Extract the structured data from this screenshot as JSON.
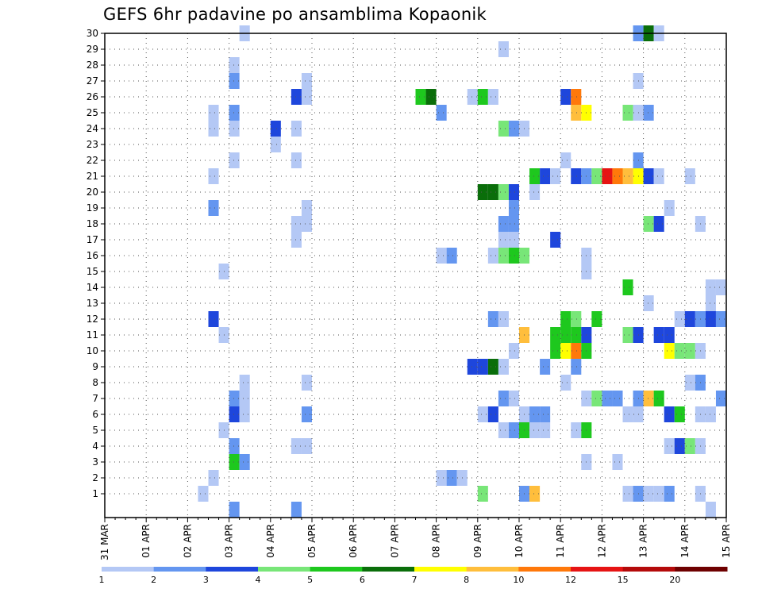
{
  "chart_data": {
    "type": "heatmap",
    "title": "GEFS 6hr padavine po ansamblima Kopaonik",
    "xlabel": "",
    "ylabel": "",
    "x_tick_labels": [
      "31 MAR",
      "01 APR",
      "02 APR",
      "03 APR",
      "04 APR",
      "05 APR",
      "06 APR",
      "07 APR",
      "08 APR",
      "09 APR",
      "10 APR",
      "11 APR",
      "12 APR",
      "13 APR",
      "14 APR",
      "15 APR"
    ],
    "y_tick_labels": [
      "1",
      "2",
      "3",
      "4",
      "5",
      "6",
      "7",
      "8",
      "9",
      "10",
      "11",
      "12",
      "13",
      "14",
      "15",
      "16",
      "17",
      "18",
      "19",
      "20",
      "21",
      "22",
      "23",
      "24",
      "25",
      "26",
      "27",
      "28",
      "29",
      "30"
    ],
    "ylim": [
      1,
      30
    ],
    "grid": true,
    "colorbar": {
      "placement": "bottom",
      "labels": [
        "1",
        "2",
        "3",
        "4",
        "5",
        "6",
        "7",
        "8",
        "10",
        "12",
        "15",
        "20"
      ],
      "colors": [
        "#b4c8f5",
        "#6496f0",
        "#1e46dc",
        "#78e678",
        "#1ec81e",
        "#0a6e0a",
        "#ffff00",
        "#ffbe3c",
        "#ff780a",
        "#e61414",
        "#b40a0a",
        "#6e0000"
      ]
    },
    "cells": [
      {
        "d": "02 APR",
        "h": 6,
        "m": 1,
        "v": 1
      },
      {
        "d": "02 APR",
        "h": 12,
        "m": 24,
        "v": 1
      },
      {
        "d": "02 APR",
        "h": 12,
        "m": 25,
        "v": 1
      },
      {
        "d": "02 APR",
        "h": 12,
        "m": 21,
        "v": 1
      },
      {
        "d": "02 APR",
        "h": 12,
        "m": 19,
        "v": 2
      },
      {
        "d": "02 APR",
        "h": 12,
        "m": 12,
        "v": 3
      },
      {
        "d": "02 APR",
        "h": 12,
        "m": 2,
        "v": 1
      },
      {
        "d": "02 APR",
        "h": 18,
        "m": 15,
        "v": 1
      },
      {
        "d": "02 APR",
        "h": 18,
        "m": 11,
        "v": 1
      },
      {
        "d": "02 APR",
        "h": 18,
        "m": 5,
        "v": 1
      },
      {
        "d": "03 APR",
        "h": 0,
        "m": 28,
        "v": 1
      },
      {
        "d": "03 APR",
        "h": 0,
        "m": 27,
        "v": 2
      },
      {
        "d": "03 APR",
        "h": 0,
        "m": 25,
        "v": 2
      },
      {
        "d": "03 APR",
        "h": 0,
        "m": 24,
        "v": 1
      },
      {
        "d": "03 APR",
        "h": 0,
        "m": 22,
        "v": 1
      },
      {
        "d": "03 APR",
        "h": 0,
        "m": 7,
        "v": 2
      },
      {
        "d": "03 APR",
        "h": 0,
        "m": 6,
        "v": 3
      },
      {
        "d": "03 APR",
        "h": 0,
        "m": 4,
        "v": 2
      },
      {
        "d": "03 APR",
        "h": 0,
        "m": 3,
        "v": 5
      },
      {
        "d": "03 APR",
        "h": 0,
        "m": 0,
        "v": 2
      },
      {
        "d": "03 APR",
        "h": 6,
        "m": 30,
        "v": 1
      },
      {
        "d": "03 APR",
        "h": 6,
        "m": 8,
        "v": 1
      },
      {
        "d": "03 APR",
        "h": 6,
        "m": 7,
        "v": 1
      },
      {
        "d": "03 APR",
        "h": 6,
        "m": 6,
        "v": 1
      },
      {
        "d": "03 APR",
        "h": 6,
        "m": 3,
        "v": 2
      },
      {
        "d": "04 APR",
        "h": 0,
        "m": 24,
        "v": 3
      },
      {
        "d": "04 APR",
        "h": 0,
        "m": 23,
        "v": 1
      },
      {
        "d": "04 APR",
        "h": 12,
        "m": 26,
        "v": 3
      },
      {
        "d": "04 APR",
        "h": 12,
        "m": 24,
        "v": 1
      },
      {
        "d": "04 APR",
        "h": 12,
        "m": 22,
        "v": 1
      },
      {
        "d": "04 APR",
        "h": 12,
        "m": 18,
        "v": 1
      },
      {
        "d": "04 APR",
        "h": 12,
        "m": 17,
        "v": 1
      },
      {
        "d": "04 APR",
        "h": 12,
        "m": 4,
        "v": 1
      },
      {
        "d": "04 APR",
        "h": 12,
        "m": 0,
        "v": 2
      },
      {
        "d": "04 APR",
        "h": 18,
        "m": 27,
        "v": 1
      },
      {
        "d": "04 APR",
        "h": 18,
        "m": 26,
        "v": 1
      },
      {
        "d": "04 APR",
        "h": 18,
        "m": 19,
        "v": 1
      },
      {
        "d": "04 APR",
        "h": 18,
        "m": 18,
        "v": 1
      },
      {
        "d": "04 APR",
        "h": 18,
        "m": 8,
        "v": 1
      },
      {
        "d": "04 APR",
        "h": 18,
        "m": 6,
        "v": 2
      },
      {
        "d": "04 APR",
        "h": 18,
        "m": 4,
        "v": 1
      },
      {
        "d": "07 APR",
        "h": 12,
        "m": 26,
        "v": 5
      },
      {
        "d": "07 APR",
        "h": 18,
        "m": 26,
        "v": 6
      },
      {
        "d": "08 APR",
        "h": 0,
        "m": 25,
        "v": 2
      },
      {
        "d": "08 APR",
        "h": 0,
        "m": 16,
        "v": 1
      },
      {
        "d": "08 APR",
        "h": 0,
        "m": 2,
        "v": 1
      },
      {
        "d": "08 APR",
        "h": 6,
        "m": 16,
        "v": 2
      },
      {
        "d": "08 APR",
        "h": 6,
        "m": 2,
        "v": 2
      },
      {
        "d": "08 APR",
        "h": 12,
        "m": 2,
        "v": 1
      },
      {
        "d": "08 APR",
        "h": 18,
        "m": 26,
        "v": 1
      },
      {
        "d": "08 APR",
        "h": 18,
        "m": 9,
        "v": 3
      },
      {
        "d": "09 APR",
        "h": 0,
        "m": 26,
        "v": 5
      },
      {
        "d": "09 APR",
        "h": 0,
        "m": 20,
        "v": 6
      },
      {
        "d": "09 APR",
        "h": 0,
        "m": 9,
        "v": 3
      },
      {
        "d": "09 APR",
        "h": 0,
        "m": 6,
        "v": 1
      },
      {
        "d": "09 APR",
        "h": 0,
        "m": 1,
        "v": 4
      },
      {
        "d": "09 APR",
        "h": 6,
        "m": 26,
        "v": 1
      },
      {
        "d": "09 APR",
        "h": 6,
        "m": 20,
        "v": 6
      },
      {
        "d": "09 APR",
        "h": 6,
        "m": 16,
        "v": 1
      },
      {
        "d": "09 APR",
        "h": 6,
        "m": 12,
        "v": 2
      },
      {
        "d": "09 APR",
        "h": 6,
        "m": 9,
        "v": 6
      },
      {
        "d": "09 APR",
        "h": 6,
        "m": 6,
        "v": 3
      },
      {
        "d": "09 APR",
        "h": 12,
        "m": 29,
        "v": 1
      },
      {
        "d": "09 APR",
        "h": 12,
        "m": 24,
        "v": 4
      },
      {
        "d": "09 APR",
        "h": 12,
        "m": 20,
        "v": 4
      },
      {
        "d": "09 APR",
        "h": 12,
        "m": 18,
        "v": 2
      },
      {
        "d": "09 APR",
        "h": 12,
        "m": 17,
        "v": 1
      },
      {
        "d": "09 APR",
        "h": 12,
        "m": 16,
        "v": 4
      },
      {
        "d": "09 APR",
        "h": 12,
        "m": 12,
        "v": 1
      },
      {
        "d": "09 APR",
        "h": 12,
        "m": 9,
        "v": 1
      },
      {
        "d": "09 APR",
        "h": 12,
        "m": 7,
        "v": 2
      },
      {
        "d": "09 APR",
        "h": 12,
        "m": 5,
        "v": 1
      },
      {
        "d": "09 APR",
        "h": 18,
        "m": 24,
        "v": 2
      },
      {
        "d": "09 APR",
        "h": 18,
        "m": 20,
        "v": 3
      },
      {
        "d": "09 APR",
        "h": 18,
        "m": 19,
        "v": 2
      },
      {
        "d": "09 APR",
        "h": 18,
        "m": 18,
        "v": 2
      },
      {
        "d": "09 APR",
        "h": 18,
        "m": 17,
        "v": 1
      },
      {
        "d": "09 APR",
        "h": 18,
        "m": 16,
        "v": 5
      },
      {
        "d": "09 APR",
        "h": 18,
        "m": 10,
        "v": 1
      },
      {
        "d": "09 APR",
        "h": 18,
        "m": 7,
        "v": 1
      },
      {
        "d": "09 APR",
        "h": 18,
        "m": 5,
        "v": 2
      },
      {
        "d": "10 APR",
        "h": 0,
        "m": 24,
        "v": 1
      },
      {
        "d": "10 APR",
        "h": 0,
        "m": 16,
        "v": 4
      },
      {
        "d": "10 APR",
        "h": 0,
        "m": 11,
        "v": 8
      },
      {
        "d": "10 APR",
        "h": 0,
        "m": 6,
        "v": 1
      },
      {
        "d": "10 APR",
        "h": 0,
        "m": 5,
        "v": 5
      },
      {
        "d": "10 APR",
        "h": 0,
        "m": 1,
        "v": 2
      },
      {
        "d": "10 APR",
        "h": 6,
        "m": 21,
        "v": 5
      },
      {
        "d": "10 APR",
        "h": 6,
        "m": 20,
        "v": 1
      },
      {
        "d": "10 APR",
        "h": 6,
        "m": 6,
        "v": 2
      },
      {
        "d": "10 APR",
        "h": 6,
        "m": 5,
        "v": 1
      },
      {
        "d": "10 APR",
        "h": 6,
        "m": 1,
        "v": 8
      },
      {
        "d": "10 APR",
        "h": 12,
        "m": 21,
        "v": 3
      },
      {
        "d": "10 APR",
        "h": 12,
        "m": 9,
        "v": 2
      },
      {
        "d": "10 APR",
        "h": 12,
        "m": 6,
        "v": 2
      },
      {
        "d": "10 APR",
        "h": 12,
        "m": 5,
        "v": 1
      },
      {
        "d": "10 APR",
        "h": 18,
        "m": 21,
        "v": 1
      },
      {
        "d": "10 APR",
        "h": 18,
        "m": 10,
        "v": 5
      },
      {
        "d": "10 APR",
        "h": 18,
        "m": 11,
        "v": 5
      },
      {
        "d": "10 APR",
        "h": 18,
        "m": 17,
        "v": 3
      },
      {
        "d": "11 APR",
        "h": 0,
        "m": 26,
        "v": 3
      },
      {
        "d": "11 APR",
        "h": 0,
        "m": 22,
        "v": 1
      },
      {
        "d": "11 APR",
        "h": 0,
        "m": 10,
        "v": 7
      },
      {
        "d": "11 APR",
        "h": 0,
        "m": 11,
        "v": 5
      },
      {
        "d": "11 APR",
        "h": 0,
        "m": 12,
        "v": 5
      },
      {
        "d": "11 APR",
        "h": 0,
        "m": 8,
        "v": 1
      },
      {
        "d": "11 APR",
        "h": 6,
        "m": 26,
        "v": 9
      },
      {
        "d": "11 APR",
        "h": 6,
        "m": 25,
        "v": 8
      },
      {
        "d": "11 APR",
        "h": 6,
        "m": 21,
        "v": 3
      },
      {
        "d": "11 APR",
        "h": 6,
        "m": 10,
        "v": 9
      },
      {
        "d": "11 APR",
        "h": 6,
        "m": 11,
        "v": 5
      },
      {
        "d": "11 APR",
        "h": 6,
        "m": 12,
        "v": 4
      },
      {
        "d": "11 APR",
        "h": 6,
        "m": 9,
        "v": 2
      },
      {
        "d": "11 APR",
        "h": 6,
        "m": 5,
        "v": 1
      },
      {
        "d": "11 APR",
        "h": 12,
        "m": 25,
        "v": 7
      },
      {
        "d": "11 APR",
        "h": 12,
        "m": 21,
        "v": 2
      },
      {
        "d": "11 APR",
        "h": 12,
        "m": 16,
        "v": 1
      },
      {
        "d": "11 APR",
        "h": 12,
        "m": 15,
        "v": 1
      },
      {
        "d": "11 APR",
        "h": 12,
        "m": 11,
        "v": 3
      },
      {
        "d": "11 APR",
        "h": 12,
        "m": 10,
        "v": 5
      },
      {
        "d": "11 APR",
        "h": 12,
        "m": 7,
        "v": 1
      },
      {
        "d": "11 APR",
        "h": 12,
        "m": 5,
        "v": 5
      },
      {
        "d": "11 APR",
        "h": 12,
        "m": 3,
        "v": 1
      },
      {
        "d": "11 APR",
        "h": 18,
        "m": 21,
        "v": 4
      },
      {
        "d": "11 APR",
        "h": 18,
        "m": 12,
        "v": 5
      },
      {
        "d": "11 APR",
        "h": 18,
        "m": 7,
        "v": 4
      },
      {
        "d": "12 APR",
        "h": 0,
        "m": 21,
        "v": 10
      },
      {
        "d": "12 APR",
        "h": 0,
        "m": 7,
        "v": 2
      },
      {
        "d": "12 APR",
        "h": 6,
        "m": 21,
        "v": 9
      },
      {
        "d": "12 APR",
        "h": 6,
        "m": 7,
        "v": 2
      },
      {
        "d": "12 APR",
        "h": 6,
        "m": 3,
        "v": 1
      },
      {
        "d": "12 APR",
        "h": 12,
        "m": 25,
        "v": 4
      },
      {
        "d": "12 APR",
        "h": 12,
        "m": 21,
        "v": 8
      },
      {
        "d": "12 APR",
        "h": 12,
        "m": 14,
        "v": 5
      },
      {
        "d": "12 APR",
        "h": 12,
        "m": 11,
        "v": 4
      },
      {
        "d": "12 APR",
        "h": 12,
        "m": 6,
        "v": 1
      },
      {
        "d": "12 APR",
        "h": 12,
        "m": 1,
        "v": 1
      },
      {
        "d": "12 APR",
        "h": 18,
        "m": 30,
        "v": 2
      },
      {
        "d": "12 APR",
        "h": 18,
        "m": 27,
        "v": 1
      },
      {
        "d": "12 APR",
        "h": 18,
        "m": 25,
        "v": 1
      },
      {
        "d": "12 APR",
        "h": 18,
        "m": 22,
        "v": 2
      },
      {
        "d": "12 APR",
        "h": 18,
        "m": 21,
        "v": 7
      },
      {
        "d": "12 APR",
        "h": 18,
        "m": 11,
        "v": 3
      },
      {
        "d": "12 APR",
        "h": 18,
        "m": 7,
        "v": 2
      },
      {
        "d": "12 APR",
        "h": 18,
        "m": 6,
        "v": 1
      },
      {
        "d": "12 APR",
        "h": 18,
        "m": 1,
        "v": 2
      },
      {
        "d": "13 APR",
        "h": 0,
        "m": 30,
        "v": 6
      },
      {
        "d": "13 APR",
        "h": 0,
        "m": 25,
        "v": 2
      },
      {
        "d": "13 APR",
        "h": 0,
        "m": 21,
        "v": 3
      },
      {
        "d": "13 APR",
        "h": 0,
        "m": 18,
        "v": 4
      },
      {
        "d": "13 APR",
        "h": 0,
        "m": 13,
        "v": 1
      },
      {
        "d": "13 APR",
        "h": 0,
        "m": 7,
        "v": 8
      },
      {
        "d": "13 APR",
        "h": 0,
        "m": 1,
        "v": 1
      },
      {
        "d": "13 APR",
        "h": 6,
        "m": 30,
        "v": 1
      },
      {
        "d": "13 APR",
        "h": 6,
        "m": 21,
        "v": 1
      },
      {
        "d": "13 APR",
        "h": 6,
        "m": 18,
        "v": 3
      },
      {
        "d": "13 APR",
        "h": 6,
        "m": 11,
        "v": 3
      },
      {
        "d": "13 APR",
        "h": 6,
        "m": 7,
        "v": 5
      },
      {
        "d": "13 APR",
        "h": 6,
        "m": 1,
        "v": 1
      },
      {
        "d": "13 APR",
        "h": 12,
        "m": 19,
        "v": 1
      },
      {
        "d": "13 APR",
        "h": 12,
        "m": 11,
        "v": 3
      },
      {
        "d": "13 APR",
        "h": 12,
        "m": 10,
        "v": 7
      },
      {
        "d": "13 APR",
        "h": 12,
        "m": 6,
        "v": 3
      },
      {
        "d": "13 APR",
        "h": 12,
        "m": 4,
        "v": 1
      },
      {
        "d": "13 APR",
        "h": 12,
        "m": 1,
        "v": 2
      },
      {
        "d": "13 APR",
        "h": 18,
        "m": 12,
        "v": 1
      },
      {
        "d": "13 APR",
        "h": 18,
        "m": 10,
        "v": 4
      },
      {
        "d": "13 APR",
        "h": 18,
        "m": 6,
        "v": 5
      },
      {
        "d": "13 APR",
        "h": 18,
        "m": 4,
        "v": 3
      },
      {
        "d": "14 APR",
        "h": 0,
        "m": 21,
        "v": 1
      },
      {
        "d": "14 APR",
        "h": 0,
        "m": 12,
        "v": 3
      },
      {
        "d": "14 APR",
        "h": 0,
        "m": 10,
        "v": 4
      },
      {
        "d": "14 APR",
        "h": 0,
        "m": 8,
        "v": 1
      },
      {
        "d": "14 APR",
        "h": 0,
        "m": 4,
        "v": 4
      },
      {
        "d": "14 APR",
        "h": 6,
        "m": 18,
        "v": 1
      },
      {
        "d": "14 APR",
        "h": 6,
        "m": 12,
        "v": 2
      },
      {
        "d": "14 APR",
        "h": 6,
        "m": 10,
        "v": 1
      },
      {
        "d": "14 APR",
        "h": 6,
        "m": 8,
        "v": 2
      },
      {
        "d": "14 APR",
        "h": 6,
        "m": 6,
        "v": 1
      },
      {
        "d": "14 APR",
        "h": 6,
        "m": 4,
        "v": 1
      },
      {
        "d": "14 APR",
        "h": 6,
        "m": 1,
        "v": 1
      },
      {
        "d": "14 APR",
        "h": 12,
        "m": 14,
        "v": 1
      },
      {
        "d": "14 APR",
        "h": 12,
        "m": 13,
        "v": 1
      },
      {
        "d": "14 APR",
        "h": 12,
        "m": 12,
        "v": 3
      },
      {
        "d": "14 APR",
        "h": 12,
        "m": 6,
        "v": 1
      },
      {
        "d": "14 APR",
        "h": 12,
        "m": 0,
        "v": 1
      },
      {
        "d": "14 APR",
        "h": 18,
        "m": 14,
        "v": 1
      },
      {
        "d": "14 APR",
        "h": 18,
        "m": 12,
        "v": 2
      },
      {
        "d": "14 APR",
        "h": 18,
        "m": 7,
        "v": 2
      }
    ]
  }
}
